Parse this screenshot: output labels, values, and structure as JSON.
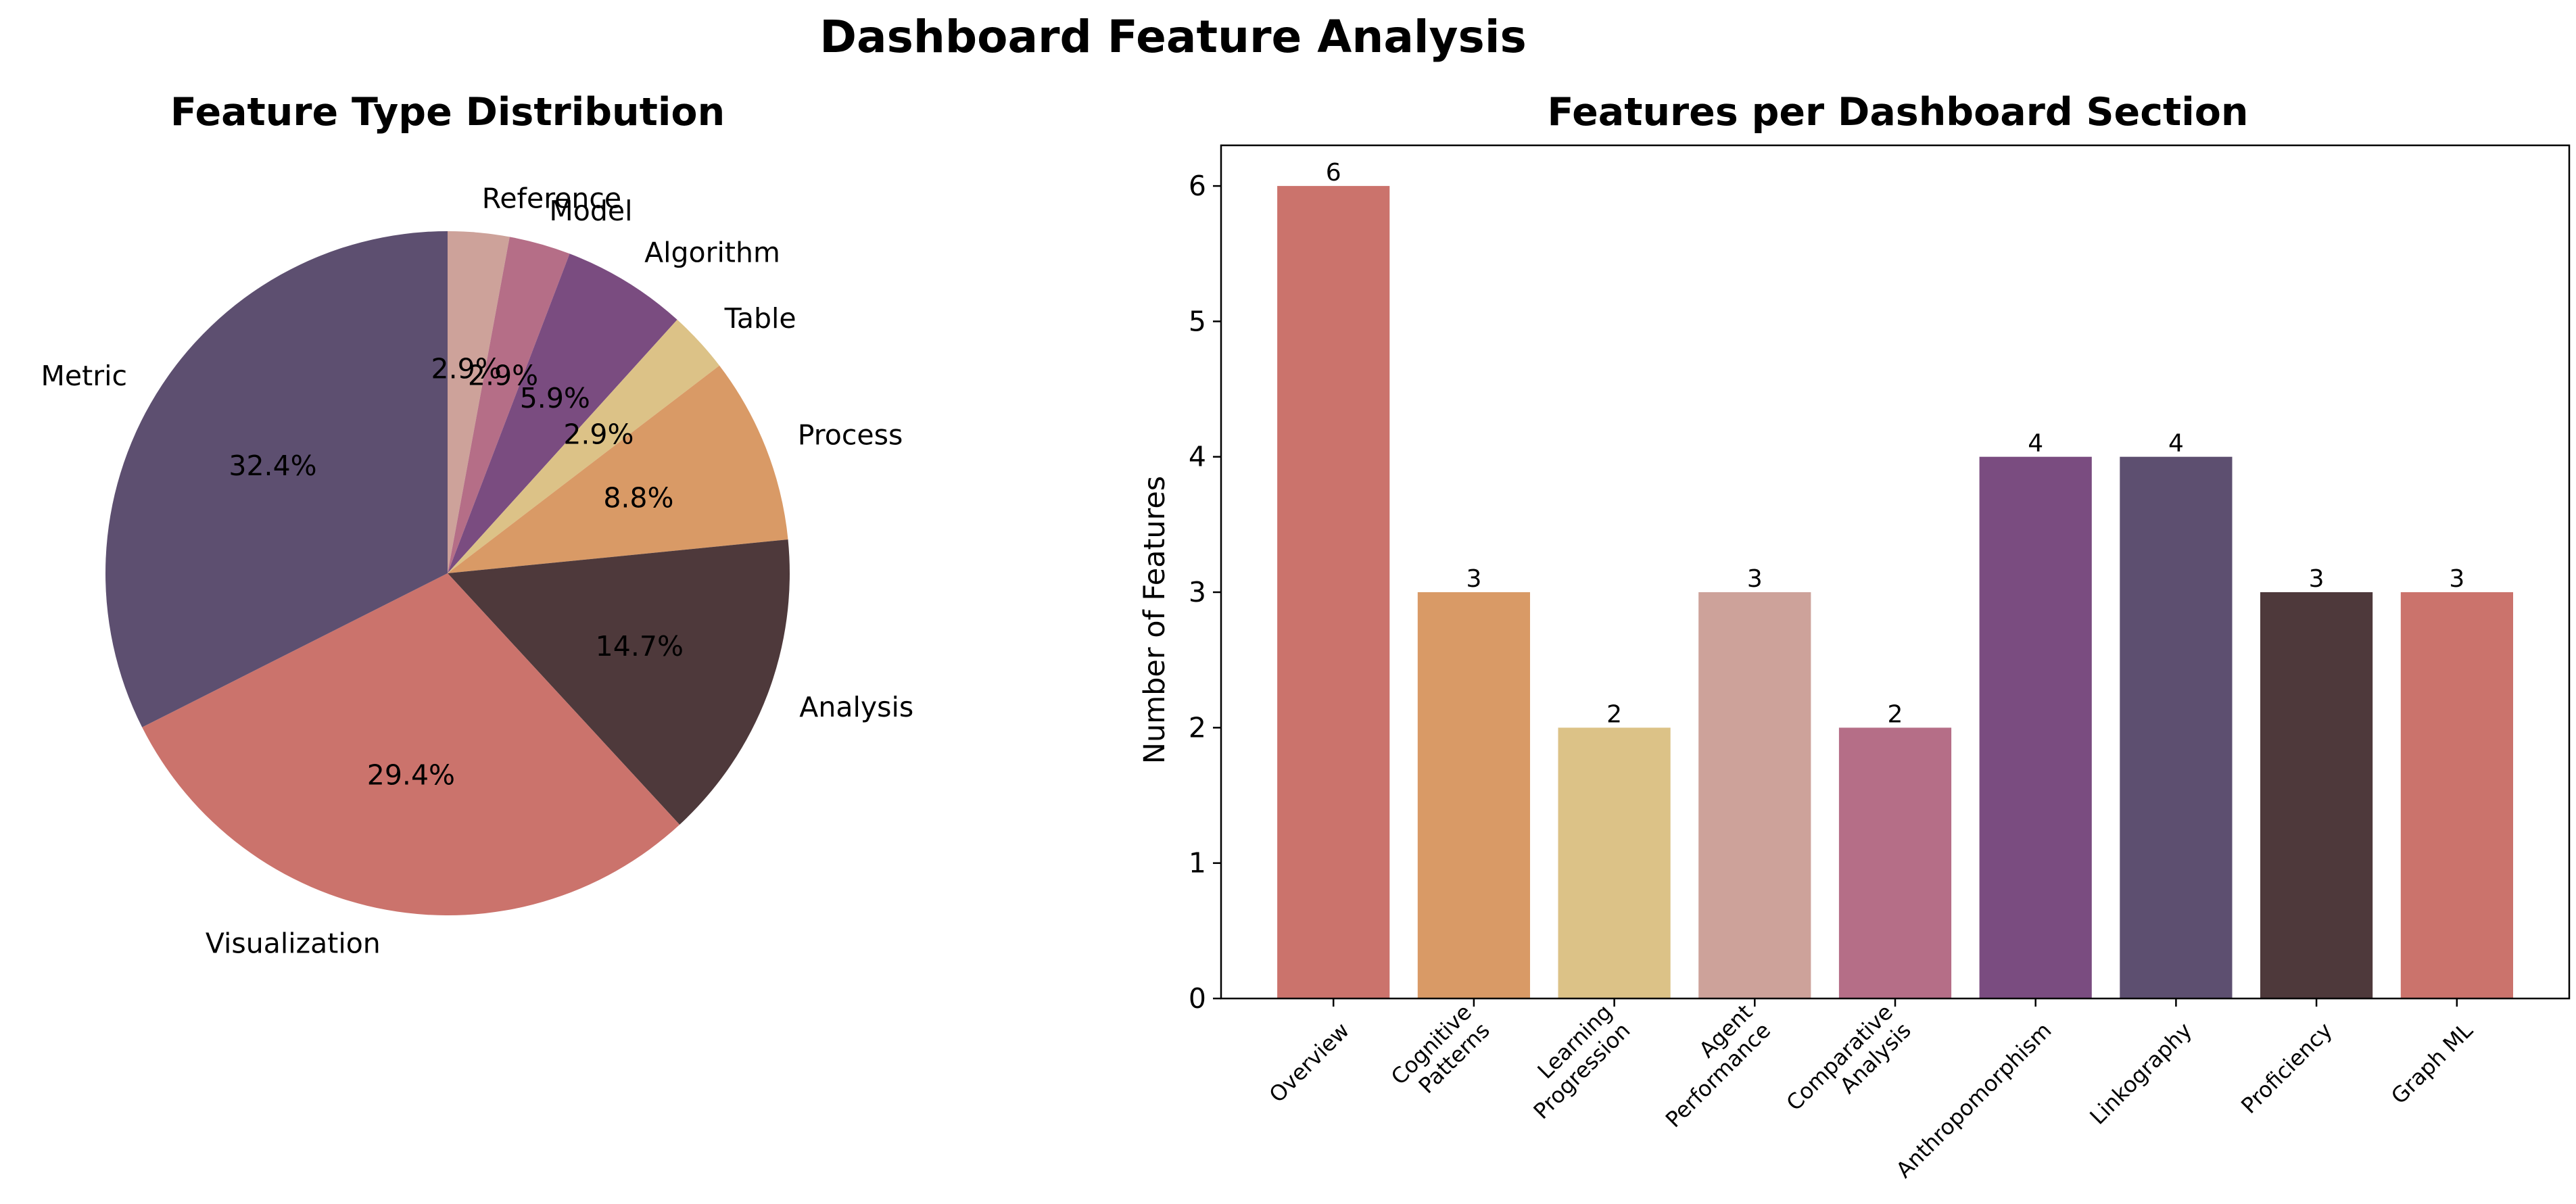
{
  "suptitle": "Dashboard Feature Analysis",
  "chart_data": [
    {
      "type": "pie",
      "title": "Feature Type Distribution",
      "categories": [
        "Reference",
        "Model",
        "Algorithm",
        "Table",
        "Process",
        "Analysis",
        "Visualization",
        "Metric"
      ],
      "values": [
        2.9,
        2.9,
        5.9,
        2.9,
        8.8,
        14.7,
        29.4,
        32.4
      ],
      "pct_labels": [
        "2.9%",
        "2.9%",
        "5.9%",
        "2.9%",
        "8.8%",
        "14.7%",
        "29.4%",
        "32.4%"
      ],
      "colors": [
        "#cda29a",
        "#b56e87",
        "#7a4c80",
        "#dcc287",
        "#d99a66",
        "#4e393b",
        "#cb736c",
        "#5d4f70"
      ],
      "start_angle": "90 degrees, clockwise",
      "legend": "none"
    },
    {
      "type": "bar",
      "title": "Features per Dashboard Section",
      "xlabel": "",
      "ylabel": "Number of Features",
      "categories": [
        "Overview",
        "Cognitive\nPatterns",
        "Learning\nProgression",
        "Agent\nPerformance",
        "Comparative\nAnalysis",
        "Anthropomorphism",
        "Linkography",
        "Proficiency",
        "Graph ML"
      ],
      "values": [
        6,
        3,
        2,
        3,
        2,
        4,
        4,
        3,
        3
      ],
      "value_labels": [
        "6",
        "3",
        "2",
        "3",
        "2",
        "4",
        "4",
        "3",
        "3"
      ],
      "colors": [
        "#cb736c",
        "#d99a66",
        "#dcc287",
        "#cda29a",
        "#b56e87",
        "#7a4c80",
        "#5d4f70",
        "#4e393b",
        "#cb736c"
      ],
      "yticks": [
        "0",
        "1",
        "2",
        "3",
        "4",
        "5",
        "6"
      ],
      "ylim": [
        0,
        6.3
      ],
      "grid": false
    }
  ]
}
